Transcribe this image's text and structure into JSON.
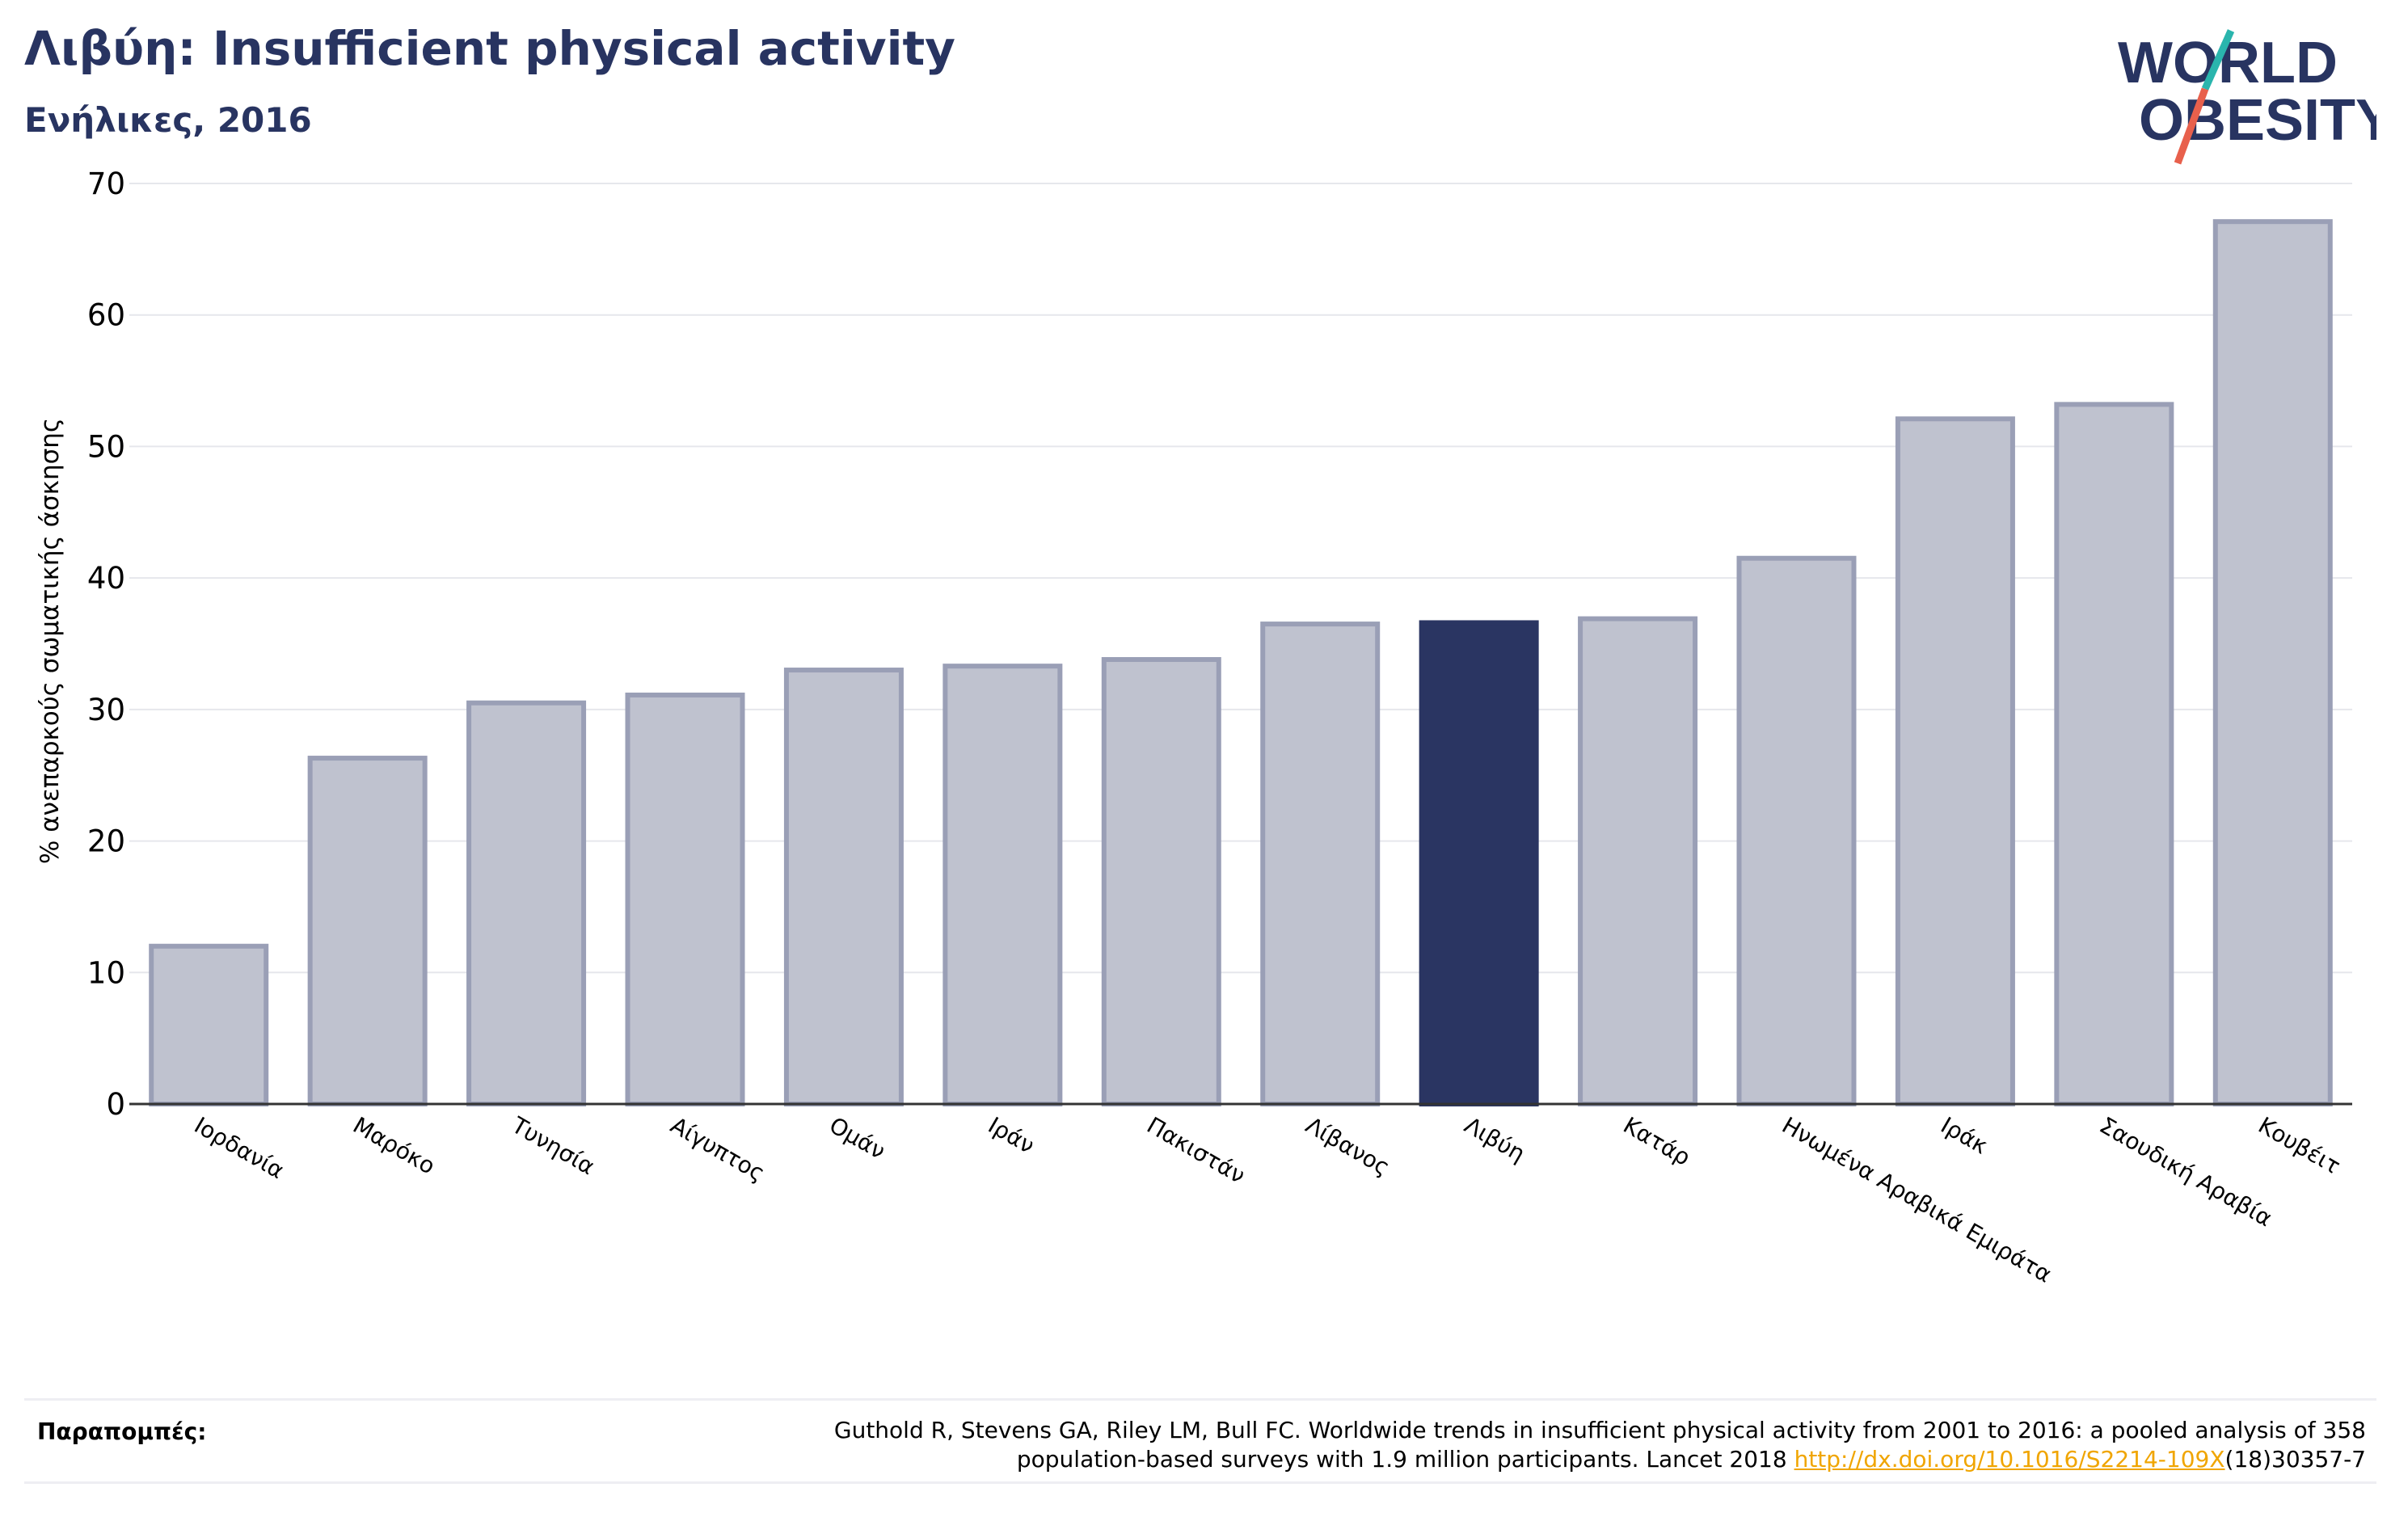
{
  "header": {
    "title": "Λιβύη: Insufficient physical activity",
    "subtitle": "Ενήλικες, 2016"
  },
  "logo": {
    "line1": "WORLD",
    "line2": "OBESITY",
    "text_color": "#283461",
    "slash_top_color": "#2ab5ad",
    "slash_bottom_color": "#e8604c"
  },
  "chart_data": {
    "type": "bar",
    "ylabel": "% ανεπαρκούς σωματικής άσκησης",
    "xlabel": "",
    "ylim": [
      0,
      70
    ],
    "yticks": [
      0,
      10,
      20,
      30,
      40,
      50,
      60,
      70
    ],
    "grid": true,
    "categories": [
      "Ιορδανία",
      "Μαρόκο",
      "Τυνησία",
      "Αίγυπτος",
      "Ομάν",
      "Ιράν",
      "Πακιστάν",
      "Λίβανος",
      "Λιβύη",
      "Κατάρ",
      "Ηνωμένα Αραβικά Εμιράτα",
      "Ιράκ",
      "Σαουδική Αραβία",
      "Κουβέιτ"
    ],
    "values": [
      12.0,
      26.3,
      30.5,
      31.1,
      33.0,
      33.3,
      33.8,
      36.5,
      36.6,
      36.9,
      41.5,
      52.1,
      53.2,
      67.1
    ],
    "highlight": "Λιβύη",
    "colors": {
      "bar_fill": "#bfc2cf",
      "bar_edge": "#9a9fb6",
      "highlight": "#2a3562",
      "grid": "#e6e7ec",
      "axis": "#333333"
    }
  },
  "footer": {
    "ref_label": "Παραπομπές:",
    "ref_line1": "Guthold R, Stevens GA, Riley LM, Bull FC. Worldwide trends in insufficient physical activity from 2001 to 2016: a pooled analysis of 358",
    "ref_line2_prefix": "population-based surveys with 1.9 million participants. Lancet 2018 ",
    "ref_link": "http://dx.doi.org/10.1016/S2214-109X",
    "ref_line2_suffix": "(18)30357-7"
  }
}
